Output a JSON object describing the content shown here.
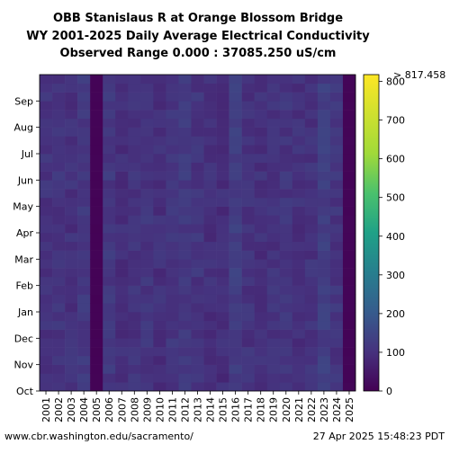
{
  "chart_data": {
    "type": "heatmap",
    "title_lines": [
      "OBB Stanislaus R at Orange Blossom Bridge",
      "WY 2001-2025 Daily Average Electrical Conductivity",
      "Observed Range 0.000 : 37085.250 uS/cm"
    ],
    "x_categories": [
      "2001",
      "2002",
      "2003",
      "2004",
      "2005",
      "2006",
      "2007",
      "2008",
      "2009",
      "2010",
      "2011",
      "2012",
      "2013",
      "2014",
      "2015",
      "2016",
      "2017",
      "2018",
      "2019",
      "2020",
      "2021",
      "2022",
      "2023",
      "2024",
      "2025"
    ],
    "y_ticks": [
      "Oct",
      "Nov",
      "Dec",
      "Jan",
      "Feb",
      "Mar",
      "Apr",
      "May",
      "Jun",
      "Jul",
      "Aug",
      "Sep"
    ],
    "colorbar": {
      "ticks": [
        0,
        100,
        200,
        300,
        400,
        500,
        600,
        700,
        800
      ],
      "max_label": "> 817.458",
      "range": [
        0,
        817.458
      ],
      "colormap": "viridis"
    },
    "column_base_values": [
      105,
      108,
      102,
      120,
      5,
      115,
      98,
      105,
      110,
      100,
      112,
      120,
      110,
      98,
      95,
      130,
      105,
      100,
      105,
      110,
      100,
      105,
      130,
      110,
      8
    ],
    "missing_data_note": "white cells = no data"
  },
  "footer": {
    "source": "www.cbr.washington.edu/sacramento/",
    "timestamp": "27 Apr 2025 15:48:23 PDT"
  }
}
